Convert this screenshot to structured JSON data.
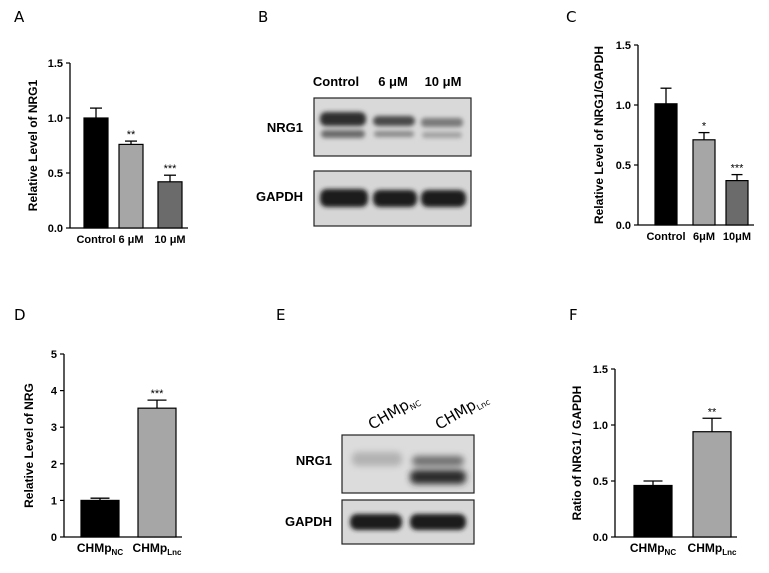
{
  "panels": {
    "A": "A",
    "B": "B",
    "C": "C",
    "D": "D",
    "E": "E",
    "F": "F"
  },
  "chart_data": [
    {
      "panel": "A",
      "type": "bar",
      "categories": [
        "Control",
        "6 μM",
        "10 μM"
      ],
      "values": [
        1.0,
        0.76,
        0.42
      ],
      "errors": [
        0.09,
        0.03,
        0.06
      ],
      "significance": [
        "",
        "**",
        "***"
      ],
      "colors": [
        "#000000",
        "#a6a6a6",
        "#6b6b6b"
      ],
      "title": "",
      "xlabel": "",
      "ylabel": "Relative Level of NRG1",
      "ylim": [
        0,
        1.5
      ],
      "yticks": [
        "0.0",
        "0.5",
        "1.0",
        "1.5"
      ]
    },
    {
      "panel": "C",
      "type": "bar",
      "categories": [
        "Control",
        "6μM",
        "10μM"
      ],
      "values": [
        1.01,
        0.71,
        0.37
      ],
      "errors": [
        0.13,
        0.06,
        0.05
      ],
      "significance": [
        "",
        "*",
        "***"
      ],
      "colors": [
        "#000000",
        "#a6a6a6",
        "#6b6b6b"
      ],
      "title": "",
      "xlabel": "",
      "ylabel": "Relative Level of NRG1/GAPDH",
      "ylim": [
        0,
        1.5
      ],
      "yticks": [
        "0.0",
        "0.5",
        "1.0",
        "1.5"
      ]
    },
    {
      "panel": "D",
      "type": "bar",
      "categories": [
        {
          "base": "CHMp",
          "sub": "NC"
        },
        {
          "base": "CHMp",
          "sub": "Lnc"
        }
      ],
      "values": [
        1.0,
        3.52
      ],
      "errors": [
        0.06,
        0.22
      ],
      "significance": [
        "",
        "***"
      ],
      "colors": [
        "#000000",
        "#a6a6a6"
      ],
      "title": "",
      "xlabel": "",
      "ylabel": "Relative Level of NRG",
      "ylim": [
        0,
        5
      ],
      "yticks": [
        "0",
        "1",
        "2",
        "3",
        "4",
        "5"
      ]
    },
    {
      "panel": "F",
      "type": "bar",
      "categories": [
        {
          "base": "CHMp",
          "sub": "NC"
        },
        {
          "base": "CHMp",
          "sub": "Lnc"
        }
      ],
      "values": [
        0.46,
        0.94
      ],
      "errors": [
        0.04,
        0.12
      ],
      "significance": [
        "",
        "**"
      ],
      "colors": [
        "#000000",
        "#a6a6a6"
      ],
      "title": "",
      "xlabel": "",
      "ylabel": "Ratio of NRG1 / GAPDH",
      "ylim": [
        0,
        1.5
      ],
      "yticks": [
        "0.0",
        "0.5",
        "1.0",
        "1.5"
      ]
    }
  ],
  "blots": {
    "B": {
      "lanes": [
        "Control",
        "6 μM",
        "10 μM"
      ],
      "rows": [
        "NRG1",
        "GAPDH"
      ]
    },
    "E": {
      "lanes": [
        {
          "base": "CHMp",
          "sub": "NC"
        },
        {
          "base": "CHMp",
          "sub": "Lnc"
        }
      ],
      "rows": [
        "NRG1",
        "GAPDH"
      ]
    }
  }
}
